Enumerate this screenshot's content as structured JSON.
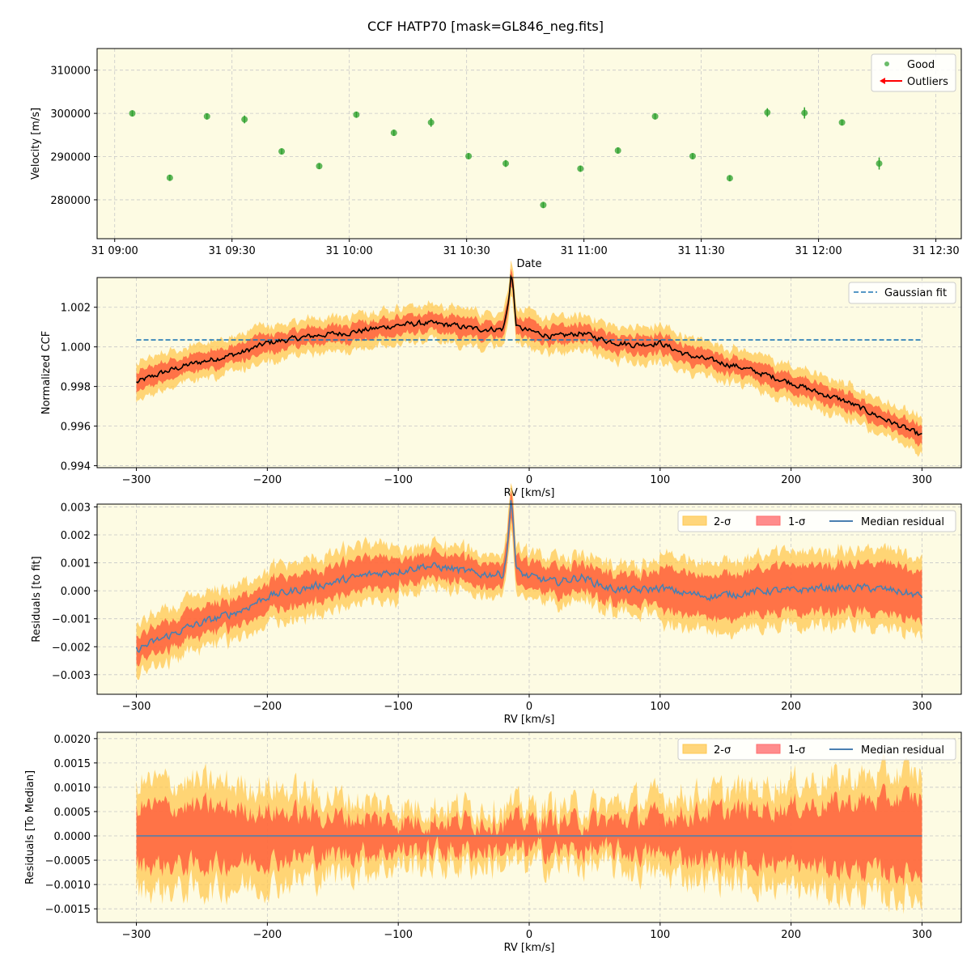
{
  "figure_title": "CCF HATP70 [mask=GL846_neg.fits]",
  "colors": {
    "panel_bg": "#fdfbe3",
    "good": "#2ca02c",
    "outlier": "#ff0000",
    "band2": "#ffc850",
    "band1": "#ff5a3c",
    "ccf_line": "#000000",
    "gauss": "#1f77b4",
    "median": "#4a7fb0",
    "grid": "#c8c8c8"
  },
  "chart_data": [
    {
      "type": "scatter",
      "id": "velocity",
      "xlabel": "Date",
      "ylabel": "Velocity [m/s]",
      "xlim": [
        "31 09:00",
        "31 12:30"
      ],
      "x_ticks": [
        "31 09:00",
        "31 09:30",
        "31 10:00",
        "31 10:30",
        "31 11:00",
        "31 11:30",
        "31 12:00",
        "31 12:30"
      ],
      "xlim_minutes": [
        -4.5,
        216.5
      ],
      "ylim": [
        271000,
        315000
      ],
      "y_ticks": [
        280000,
        290000,
        300000,
        310000
      ],
      "legend": [
        {
          "label": "Good",
          "symbol": "dot"
        },
        {
          "label": "Outliers",
          "symbol": "arrow"
        }
      ],
      "series": [
        {
          "name": "Good",
          "x": [
            "31 09:04",
            "31 09:14",
            "31 09:23",
            "31 09:33",
            "31 09:42",
            "31 09:52",
            "31 10:02",
            "31 10:11",
            "31 10:21",
            "31 10:31",
            "31 10:40",
            "31 10:50",
            "31 10:59",
            "31 11:09",
            "31 11:19",
            "31 11:28",
            "31 11:38",
            "31 11:47",
            "31 11:57",
            "31 12:06",
            "31 12:16"
          ],
          "x_minutes": [
            4.5,
            14.1,
            23.6,
            33.2,
            42.7,
            52.3,
            61.8,
            71.4,
            80.9,
            90.5,
            100.0,
            109.6,
            119.1,
            128.7,
            138.2,
            147.8,
            157.3,
            166.9,
            176.4,
            186.0,
            195.5
          ],
          "y": [
            300000,
            285100,
            299300,
            298600,
            291200,
            287800,
            299700,
            295500,
            297900,
            290100,
            288400,
            278800,
            287200,
            291400,
            299300,
            290100,
            285000,
            300200,
            300100,
            297900,
            288400
          ],
          "err": [
            700,
            700,
            700,
            900,
            700,
            700,
            700,
            700,
            1000,
            700,
            800,
            700,
            700,
            700,
            700,
            700,
            700,
            1000,
            1300,
            700,
            1400
          ]
        }
      ]
    },
    {
      "type": "line",
      "id": "ccf",
      "xlabel": "RV [km/s]",
      "ylabel": "Normalized CCF",
      "xlim": [
        -330,
        330
      ],
      "x_ticks": [
        -300,
        -200,
        -100,
        0,
        100,
        200,
        300
      ],
      "ylim": [
        0.9939,
        1.0035
      ],
      "y_ticks": [
        0.994,
        0.996,
        0.998,
        1.0,
        1.002
      ],
      "y_tick_labels": [
        "0.994",
        "0.996",
        "0.998",
        "1.000",
        "1.002"
      ],
      "legend": [
        {
          "label": "Gaussian fit",
          "symbol": "dashed"
        }
      ],
      "gaussian_fit": {
        "x": [
          -300,
          300
        ],
        "y": [
          1.00035,
          1.00035
        ]
      },
      "curve_knots": {
        "x": [
          -300,
          -280,
          -260,
          -240,
          -220,
          -200,
          -180,
          -160,
          -140,
          -120,
          -100,
          -80,
          -60,
          -40,
          -20,
          -14,
          -10,
          0,
          20,
          40,
          60,
          80,
          100,
          120,
          140,
          160,
          180,
          200,
          220,
          240,
          260,
          280,
          300
        ],
        "y": [
          0.9982,
          0.9987,
          0.9991,
          0.9994,
          0.9997,
          1.0002,
          1.0004,
          1.0006,
          1.0007,
          1.0009,
          1.0011,
          1.0012,
          1.0011,
          1.0009,
          1.0009,
          1.0026,
          1.001,
          1.0008,
          1.0005,
          1.0007,
          1.0003,
          1.0001,
          1.0002,
          0.9996,
          0.9993,
          0.999,
          0.9986,
          0.9982,
          0.9977,
          0.9973,
          0.9967,
          0.9961,
          0.9955
        ]
      },
      "band1_halfwidth": 0.00045,
      "band2_halfwidth": 0.0009
    },
    {
      "type": "area",
      "id": "res_fit",
      "xlabel": "RV [km/s]",
      "ylabel": "Residuals [to fit]",
      "xlim": [
        -330,
        330
      ],
      "x_ticks": [
        -300,
        -200,
        -100,
        0,
        100,
        200,
        300
      ],
      "ylim": [
        -0.0037,
        0.0031
      ],
      "y_ticks": [
        -0.003,
        -0.002,
        -0.001,
        0.0,
        0.001,
        0.002,
        0.003
      ],
      "y_tick_labels": [
        "−0.003",
        "−0.002",
        "−0.001",
        "0.000",
        "0.001",
        "0.002",
        "0.003"
      ],
      "legend": [
        {
          "label": "2-σ",
          "symbol": "patch2"
        },
        {
          "label": "1-σ",
          "symbol": "patch1"
        },
        {
          "label": "Median residual",
          "symbol": "line"
        }
      ],
      "curve_knots": {
        "x": [
          -300,
          -280,
          -260,
          -240,
          -220,
          -200,
          -180,
          -160,
          -140,
          -120,
          -100,
          -80,
          -60,
          -40,
          -20,
          -14,
          -10,
          0,
          20,
          40,
          60,
          80,
          100,
          120,
          140,
          160,
          180,
          200,
          220,
          240,
          260,
          280,
          300
        ],
        "y": [
          -0.0021,
          -0.0017,
          -0.0013,
          -0.001,
          -0.0007,
          -0.0002,
          0.0,
          0.0002,
          0.0004,
          0.0006,
          0.0007,
          0.0009,
          0.0008,
          0.0006,
          0.0006,
          0.0023,
          0.0007,
          0.0005,
          0.0003,
          0.0005,
          0.0001,
          0.0,
          0.0001,
          -0.0001,
          -0.0002,
          -0.0001,
          0.0,
          0.0,
          0.0001,
          0.0001,
          0.0001,
          0.0,
          -0.0002
        ]
      },
      "band1_halfwidth_start": 0.00045,
      "band1_halfwidth_end": 0.0009,
      "band2_halfwidth_start": 0.0009,
      "band2_halfwidth_end": 0.0014
    },
    {
      "type": "area",
      "id": "res_median",
      "xlabel": "RV [km/s]",
      "ylabel": "Residuals [To Median]",
      "xlim": [
        -330,
        330
      ],
      "x_ticks": [
        -300,
        -200,
        -100,
        0,
        100,
        200,
        300
      ],
      "ylim": [
        -0.00178,
        0.00213
      ],
      "y_ticks": [
        -0.0015,
        -0.001,
        -0.0005,
        0.0,
        0.0005,
        0.001,
        0.0015,
        0.002
      ],
      "y_tick_labels": [
        "−0.0015",
        "−0.0010",
        "−0.0005",
        "0.0000",
        "0.0005",
        "0.0010",
        "0.0015",
        "0.0020"
      ],
      "legend": [
        {
          "label": "2-σ",
          "symbol": "patch2"
        },
        {
          "label": "1-σ",
          "symbol": "patch1"
        },
        {
          "label": "Median residual",
          "symbol": "line"
        }
      ],
      "median_value": 0.0,
      "band_profile": {
        "x": [
          -300,
          -250,
          -200,
          -150,
          -100,
          -50,
          0,
          50,
          100,
          150,
          200,
          250,
          300
        ],
        "band1": [
          0.0006,
          0.0006,
          0.0005,
          0.0004,
          0.0003,
          0.0003,
          0.0003,
          0.0003,
          0.0004,
          0.0005,
          0.0006,
          0.0007,
          0.0008
        ],
        "band2": [
          0.0011,
          0.0011,
          0.001,
          0.0008,
          0.0006,
          0.0006,
          0.0006,
          0.0006,
          0.0008,
          0.0009,
          0.0011,
          0.0012,
          0.0013
        ]
      }
    }
  ]
}
